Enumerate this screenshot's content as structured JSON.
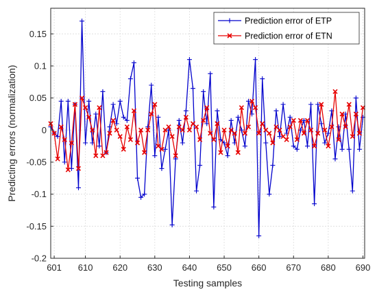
{
  "chart_data": {
    "type": "line",
    "title": "",
    "xlabel": "Testing samples",
    "ylabel": "Predicting errors (normalization)",
    "xlim": [
      600,
      690.5
    ],
    "ylim": [
      -0.2,
      0.19
    ],
    "xticks": [
      610,
      620,
      630,
      640,
      650,
      660,
      670,
      680,
      690
    ],
    "yticks": [
      -0.2,
      -0.15,
      -0.1,
      -0.05,
      0,
      0.05,
      0.1,
      0.15
    ],
    "ytick_labels": [
      "-0.2",
      "-0.15",
      "-0.1",
      "-0.05",
      "0",
      "0.05",
      "0.1",
      "0.15"
    ],
    "xtick_labels": [
      "610",
      "620",
      "630",
      "640",
      "650",
      "660",
      "670",
      "680",
      "690"
    ],
    "extra_xtick_labels": [
      {
        "value": 601,
        "label": "601"
      }
    ],
    "grid": true,
    "legend_position": "top-right",
    "x": [
      600,
      601,
      602,
      603,
      604,
      605,
      606,
      607,
      608,
      609,
      610,
      611,
      612,
      613,
      614,
      615,
      616,
      617,
      618,
      619,
      620,
      621,
      622,
      623,
      624,
      625,
      626,
      627,
      628,
      629,
      630,
      631,
      632,
      633,
      634,
      635,
      636,
      637,
      638,
      639,
      640,
      641,
      642,
      643,
      644,
      645,
      646,
      647,
      648,
      649,
      650,
      651,
      652,
      653,
      654,
      655,
      656,
      657,
      658,
      659,
      660,
      661,
      662,
      663,
      664,
      665,
      666,
      667,
      668,
      669,
      670,
      671,
      672,
      673,
      674,
      675,
      676,
      677,
      678,
      679,
      680,
      681,
      682,
      683,
      684,
      685,
      686,
      687,
      688,
      689,
      690
    ],
    "series": [
      {
        "name": "Prediction error of ETP",
        "color": "#0000cc",
        "marker": "plus",
        "values": [
          0.005,
          -0.005,
          -0.01,
          0.045,
          -0.05,
          0.045,
          -0.06,
          0.04,
          -0.09,
          0.17,
          -0.02,
          0.045,
          -0.02,
          0.025,
          -0.025,
          0.06,
          -0.035,
          0.005,
          0.04,
          0.01,
          0.045,
          0.02,
          0.015,
          0.08,
          0.105,
          -0.075,
          -0.105,
          -0.1,
          0.005,
          0.07,
          -0.04,
          0.02,
          -0.06,
          -0.03,
          0.0,
          -0.148,
          -0.045,
          0.015,
          -0.02,
          0.03,
          0.11,
          0.065,
          -0.095,
          -0.055,
          0.06,
          0.01,
          0.088,
          -0.12,
          0.03,
          -0.015,
          -0.02,
          -0.04,
          0.015,
          -0.02,
          0.02,
          0.0,
          -0.025,
          0.045,
          0.025,
          0.11,
          -0.165,
          0.08,
          -0.02,
          -0.1,
          -0.055,
          0.03,
          -0.01,
          0.04,
          -0.005,
          0.02,
          -0.025,
          -0.03,
          0.0,
          0.015,
          -0.025,
          0.04,
          -0.115,
          0.04,
          0.01,
          -0.02,
          -0.005,
          0.03,
          -0.045,
          0.005,
          -0.03,
          0.025,
          -0.03,
          -0.095,
          0.05,
          -0.03,
          0.02
        ]
      },
      {
        "name": "Prediction error of ETN",
        "color": "#e60000",
        "marker": "x",
        "values": [
          0.01,
          -0.005,
          -0.045,
          0.005,
          -0.015,
          -0.062,
          -0.02,
          0.04,
          -0.06,
          0.05,
          0.035,
          0.02,
          0.0,
          -0.04,
          0.035,
          -0.04,
          -0.035,
          -0.005,
          0.015,
          0.0,
          -0.01,
          -0.03,
          0.005,
          -0.015,
          0.03,
          -0.02,
          0.0,
          -0.035,
          0.0,
          0.025,
          0.04,
          -0.025,
          -0.03,
          0.0,
          0.005,
          -0.01,
          -0.04,
          0.005,
          0.0,
          0.02,
          0.0,
          0.01,
          0.005,
          -0.015,
          0.015,
          0.035,
          -0.005,
          -0.015,
          0.01,
          -0.035,
          0.0,
          -0.025,
          0.0,
          -0.005,
          -0.035,
          0.035,
          -0.005,
          0.005,
          0.045,
          0.035,
          -0.005,
          0.01,
          0.0,
          -0.005,
          -0.02,
          0.005,
          0.0,
          -0.01,
          -0.015,
          0.005,
          0.015,
          -0.015,
          0.015,
          -0.005,
          0.015,
          0.0,
          -0.025,
          -0.005,
          0.04,
          0.0,
          -0.025,
          0.005,
          0.06,
          -0.015,
          0.025,
          0.005,
          0.04,
          -0.01,
          0.025,
          -0.005,
          0.035
        ]
      }
    ]
  }
}
